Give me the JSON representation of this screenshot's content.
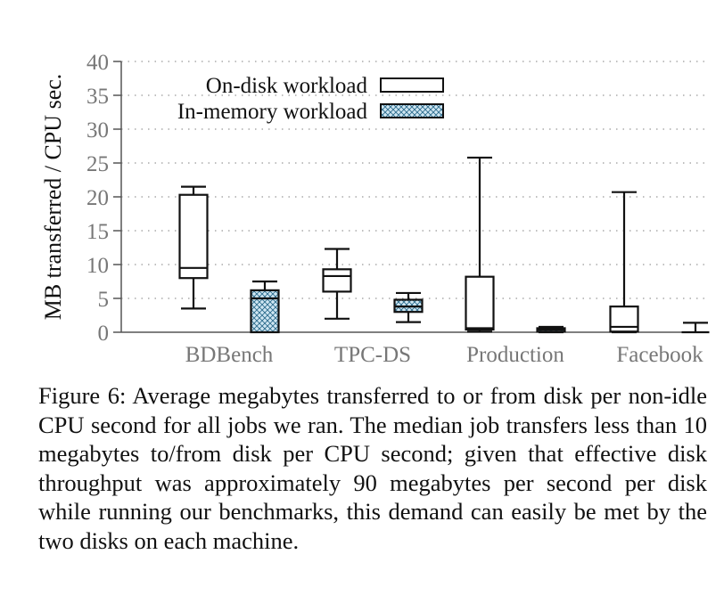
{
  "chart_data": {
    "type": "boxplot",
    "ylabel": "MB transferred / CPU sec.",
    "ylim": [
      0,
      40
    ],
    "yticks": [
      0,
      5,
      10,
      15,
      20,
      25,
      30,
      35,
      40
    ],
    "grid": true,
    "legend_placement": "top-left",
    "categories": [
      "BDBench",
      "TPC-DS",
      "Production",
      "Facebook"
    ],
    "series": [
      {
        "name": "On-disk workload",
        "fill": "none",
        "boxes": [
          {
            "min": 3.5,
            "q1": 8.0,
            "median": 9.5,
            "q3": 20.3,
            "max": 21.5
          },
          {
            "min": 2.0,
            "q1": 6.0,
            "median": 8.3,
            "q3": 9.3,
            "max": 12.3
          },
          {
            "min": 0.1,
            "q1": 0.4,
            "median": 0.6,
            "q3": 8.2,
            "max": 25.8
          },
          {
            "min": 0.0,
            "q1": 0.1,
            "median": 0.8,
            "q3": 3.8,
            "max": 20.7
          }
        ]
      },
      {
        "name": "In-memory workload",
        "fill": "crosshatch",
        "boxes": [
          {
            "min": 0.0,
            "q1": 0.0,
            "median": 5.0,
            "q3": 6.2,
            "max": 7.5
          },
          {
            "min": 1.5,
            "q1": 3.0,
            "median": 3.8,
            "q3": 4.8,
            "max": 5.8
          },
          {
            "min": 0.0,
            "q1": 0.1,
            "median": 0.4,
            "q3": 0.6,
            "max": 0.8
          },
          {
            "min": 0.0,
            "q1": 0.0,
            "median": 0.0,
            "q3": 0.0,
            "max": 1.4
          }
        ]
      }
    ]
  },
  "colors": {
    "axis": "#555555",
    "tick_label": "#777777",
    "text": "#111111",
    "grid": "#999999",
    "hatch_fill": "#cfe6f2",
    "hatch_line": "#2a6a8c"
  },
  "caption": "Figure 6: Average megabytes transferred to or from disk per non-idle CPU second for all jobs we ran. The median job transfers less than 10 megabytes to/from disk per CPU second; given that effective disk throughput was approximately 90 megabytes per second per disk while running our benchmarks, this demand can easily be met by the two disks on each machine."
}
